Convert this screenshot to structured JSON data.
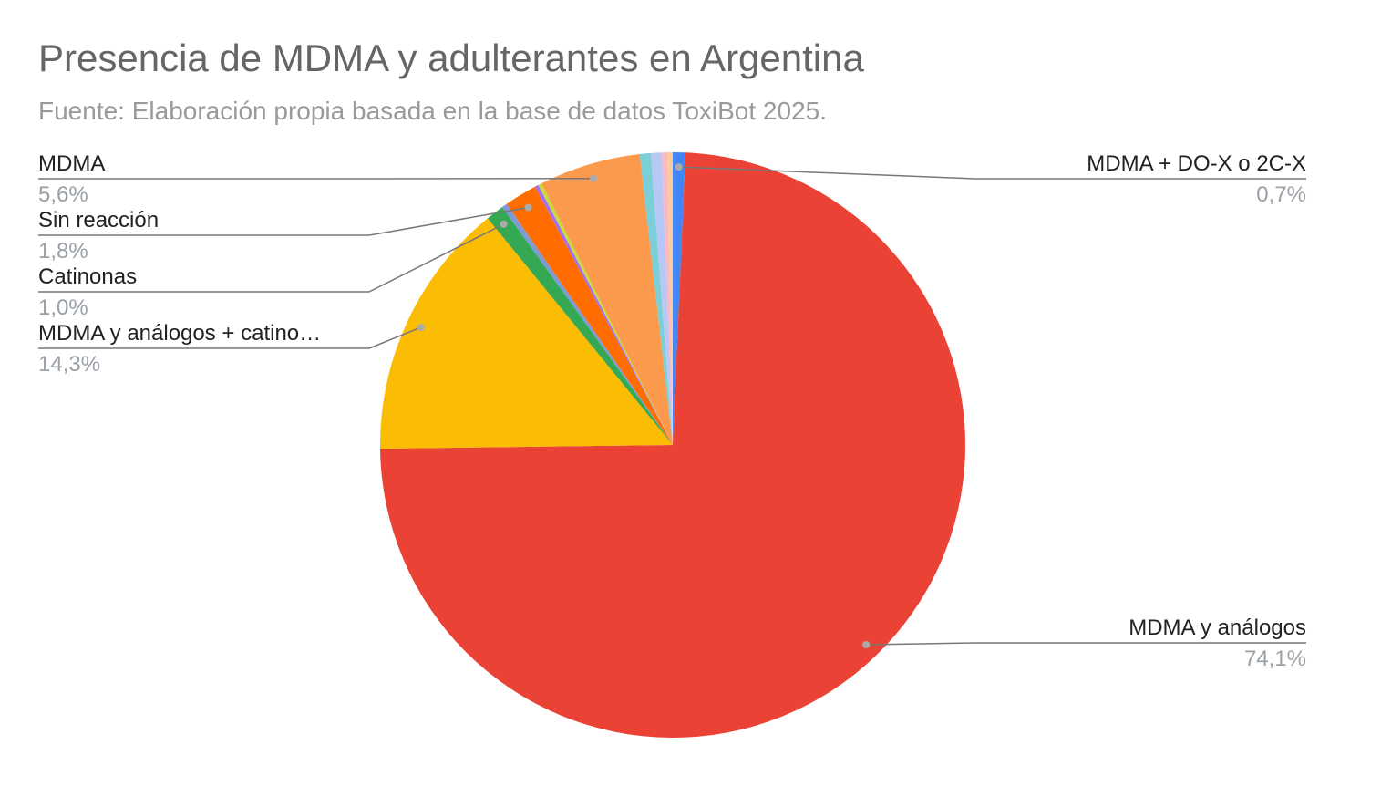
{
  "chart_data": {
    "type": "pie",
    "title": "Presencia de MDMA y adulterantes en Argentina",
    "subtitle": "Fuente: Elaboración propia basada en la base de datos ToxiBot 2025.",
    "categories": [
      "MDMA + DO-X o 2C-X",
      "MDMA y análogos",
      "MDMA y análogos + catino…",
      "Catinonas",
      null,
      "Sin reacción",
      null,
      null,
      "MDMA",
      null,
      null,
      null,
      null
    ],
    "values": [
      0.7,
      74.1,
      14.3,
      1.0,
      0.3,
      1.8,
      0.2,
      0.2,
      5.6,
      0.6,
      0.6,
      0.3,
      0.3
    ],
    "value_labels": [
      "0,7%",
      "74,1%",
      "14,3%",
      "1,0%",
      null,
      "1,8%",
      null,
      null,
      "5,6%",
      null,
      null,
      null,
      null
    ],
    "colors": [
      "#4285f4",
      "#ea4335",
      "#fbbc04",
      "#34a853",
      "#7e9bd6",
      "#ff6d01",
      "#a66ef0",
      "#c6dc3a",
      "#fb9a4d",
      "#7bcfd6",
      "#b7c8f5",
      "#f6b9c9",
      "#fccb9a"
    ]
  }
}
